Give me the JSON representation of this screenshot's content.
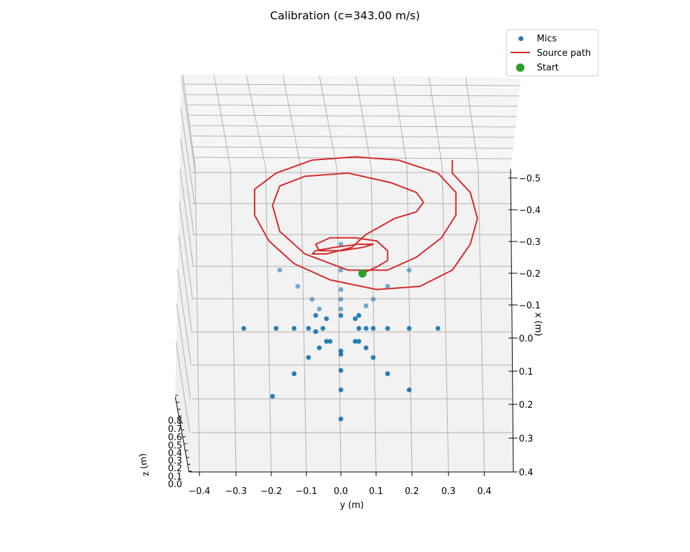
{
  "chart_data": {
    "type": "scatter",
    "projection": "3d",
    "title": "Calibration (c=343.00 m/s)",
    "xlabel": "y (m)",
    "ylabel": "x (m)",
    "zlabel": "z (m)",
    "xticks": [
      "−0.4",
      "−0.3",
      "−0.2",
      "−0.1",
      "0.0",
      "0.1",
      "0.2",
      "0.3",
      "0.4"
    ],
    "yticks": [
      "0.4",
      "0.3",
      "0.2",
      "0.1",
      "0.0",
      "−0.1",
      "−0.2",
      "−0.3",
      "−0.4",
      "−0.5"
    ],
    "zticks": [
      "0.0",
      "0.1",
      "0.2",
      "0.3",
      "0.4",
      "0.5",
      "0.6",
      "0.7",
      "0.8"
    ],
    "legend_position": "top-right",
    "grid": true,
    "colors": {
      "mics": "#1f77b4",
      "source_path": "#d62728",
      "start": "#2ca02c",
      "pane": "#f2f2f2",
      "grid": "#b0b0b0"
    },
    "legend": [
      {
        "label": "Mics",
        "kind": "marker",
        "color": "#1f77b4"
      },
      {
        "label": "Source path",
        "kind": "line",
        "color": "#d62728"
      },
      {
        "label": "Start",
        "kind": "big-marker",
        "color": "#2ca02c"
      }
    ],
    "series": [
      {
        "name": "Mics",
        "points": [
          [
            0.0,
            -0.25
          ],
          [
            0.0,
            -0.16
          ],
          [
            -0.19,
            -0.18
          ],
          [
            0.19,
            -0.16
          ],
          [
            -0.13,
            -0.11
          ],
          [
            0.13,
            -0.11
          ],
          [
            0.0,
            -0.1
          ],
          [
            -0.09,
            -0.06
          ],
          [
            0.09,
            -0.06
          ],
          [
            0.0,
            -0.05
          ],
          [
            0.0,
            -0.04
          ],
          [
            -0.06,
            -0.03
          ],
          [
            0.07,
            -0.03
          ],
          [
            -0.04,
            -0.01
          ],
          [
            -0.03,
            -0.01
          ],
          [
            0.04,
            -0.01
          ],
          [
            0.05,
            -0.01
          ],
          [
            -0.27,
            0.03
          ],
          [
            -0.18,
            0.03
          ],
          [
            -0.13,
            0.03
          ],
          [
            -0.09,
            0.03
          ],
          [
            -0.07,
            0.02
          ],
          [
            -0.05,
            0.03
          ],
          [
            0.05,
            0.03
          ],
          [
            0.07,
            0.03
          ],
          [
            0.09,
            0.03
          ],
          [
            0.13,
            0.03
          ],
          [
            0.19,
            0.03
          ],
          [
            0.27,
            0.03
          ],
          [
            0.0,
            0.07
          ],
          [
            -0.04,
            0.06
          ],
          [
            -0.07,
            0.07
          ],
          [
            0.04,
            0.06
          ],
          [
            0.05,
            0.07
          ],
          [
            -0.06,
            0.09
          ],
          [
            0.0,
            0.09
          ],
          [
            0.07,
            0.1
          ],
          [
            -0.08,
            0.12
          ],
          [
            0.09,
            0.12
          ],
          [
            0.0,
            0.12
          ],
          [
            -0.12,
            0.16
          ],
          [
            0.0,
            0.15
          ],
          [
            0.13,
            0.16
          ],
          [
            -0.17,
            0.21
          ],
          [
            0.0,
            0.21
          ],
          [
            0.19,
            0.21
          ],
          [
            0.0,
            0.29
          ]
        ]
      },
      {
        "name": "Source path",
        "points": [
          [
            0.06,
            0.2
          ],
          [
            0.1,
            0.22
          ],
          [
            0.13,
            0.24
          ],
          [
            0.13,
            0.27
          ],
          [
            0.1,
            0.3
          ],
          [
            0.04,
            0.31
          ],
          [
            -0.03,
            0.31
          ],
          [
            -0.07,
            0.29
          ],
          [
            -0.06,
            0.27
          ],
          [
            0.0,
            0.27
          ],
          [
            0.06,
            0.28
          ],
          [
            0.09,
            0.29
          ],
          [
            0.05,
            0.29
          ],
          [
            -0.02,
            0.28
          ],
          [
            -0.07,
            0.27
          ],
          [
            -0.08,
            0.26
          ],
          [
            -0.04,
            0.26
          ],
          [
            0.03,
            0.28
          ],
          [
            0.07,
            0.32
          ],
          [
            0.15,
            0.37
          ],
          [
            0.21,
            0.39
          ],
          [
            0.23,
            0.42
          ],
          [
            0.21,
            0.45
          ],
          [
            0.14,
            0.48
          ],
          [
            0.02,
            0.51
          ],
          [
            -0.1,
            0.5
          ],
          [
            -0.17,
            0.47
          ],
          [
            -0.19,
            0.41
          ],
          [
            -0.17,
            0.33
          ],
          [
            -0.1,
            0.26
          ],
          [
            0.02,
            0.21
          ],
          [
            0.13,
            0.21
          ],
          [
            0.21,
            0.25
          ],
          [
            0.28,
            0.31
          ],
          [
            0.32,
            0.38
          ],
          [
            0.32,
            0.45
          ],
          [
            0.27,
            0.51
          ],
          [
            0.16,
            0.55
          ],
          [
            0.04,
            0.56
          ],
          [
            -0.08,
            0.55
          ],
          [
            -0.18,
            0.51
          ],
          [
            -0.24,
            0.46
          ],
          [
            -0.24,
            0.38
          ],
          [
            -0.2,
            0.3
          ],
          [
            -0.13,
            0.23
          ],
          [
            -0.03,
            0.18
          ],
          [
            0.1,
            0.15
          ],
          [
            0.22,
            0.16
          ],
          [
            0.31,
            0.21
          ],
          [
            0.36,
            0.29
          ],
          [
            0.38,
            0.37
          ],
          [
            0.36,
            0.45
          ],
          [
            0.31,
            0.51
          ],
          [
            0.31,
            0.55
          ]
        ]
      },
      {
        "name": "Start",
        "points": [
          [
            0.06,
            0.2
          ]
        ]
      }
    ]
  }
}
